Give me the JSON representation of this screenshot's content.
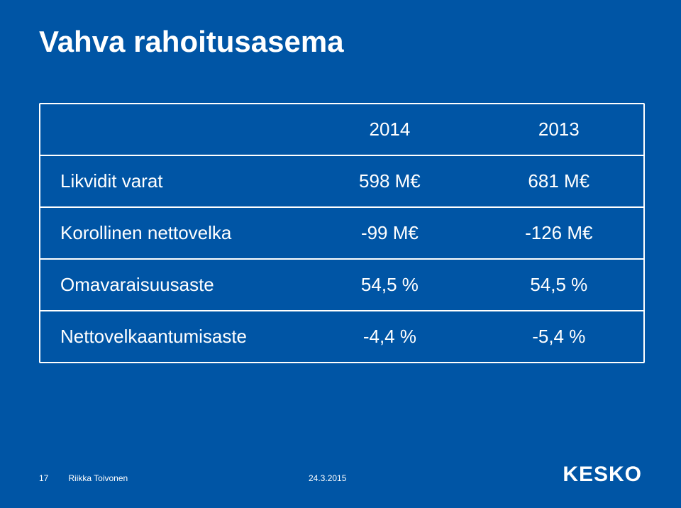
{
  "slide": {
    "background_color": "#0055a5",
    "text_color": "#ffffff",
    "border_color": "#ffffff",
    "title": "Vahva rahoitusasema",
    "title_fontsize": 42,
    "title_weight": "bold"
  },
  "table": {
    "type": "table",
    "header_fontsize": 26,
    "cell_fontsize": 26,
    "columns": [
      "",
      "2014",
      "2013"
    ],
    "rows": [
      {
        "label": "Likvidit varat",
        "y2014": "598 M€",
        "y2013": "681 M€"
      },
      {
        "label": "Korollinen nettovelka",
        "y2014": "-99 M€",
        "y2013": "-126 M€"
      },
      {
        "label": "Omavaraisuusaste",
        "y2014": "54,5 %",
        "y2013": "54,5 %"
      },
      {
        "label": "Nettovelkaantumisaste",
        "y2014": "-4,4 %",
        "y2013": "-5,4 %"
      }
    ],
    "col_widths_pct": [
      46,
      27,
      27
    ],
    "col_align": [
      "left",
      "center",
      "center"
    ]
  },
  "footer": {
    "page_number": "17",
    "author": "Riikka Toivonen",
    "date": "24.3.2015",
    "fontsize": 12
  },
  "logo": {
    "text": "KESKO",
    "color": "#ffffff",
    "fontsize": 30,
    "weight": 900
  }
}
